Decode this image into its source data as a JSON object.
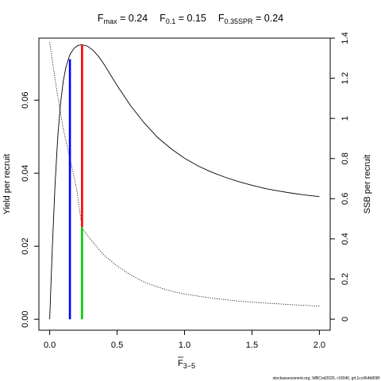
{
  "chart_data": {
    "type": "line",
    "title_parts": {
      "fmax_label": "F",
      "fmax_sub": "max",
      "fmax_value": " = 0.24",
      "f01_label": "F",
      "f01_sub": "0.1",
      "f01_value": " = 0.15",
      "fspr_label": "F",
      "fspr_sub": "0.35SPR",
      "fspr_value": " = 0.24"
    },
    "xlabel": "F",
    "xlabel_sub": "3−5",
    "ylabel_left": "Yield per recruit",
    "ylabel_right": "SSB per recruit",
    "xlim": [
      -0.08,
      2.08
    ],
    "ylim_left": [
      -0.003,
      0.077
    ],
    "ylim_right": [
      -0.055,
      1.4
    ],
    "x_ticks": [
      0,
      0.5,
      1,
      1.5,
      2
    ],
    "x_tick_labels": [
      "0.0",
      "0.5",
      "1.0",
      "1.5",
      "2.0"
    ],
    "y_left_ticks": [
      0,
      0.02,
      0.04,
      0.06
    ],
    "y_left_tick_labels": [
      "0.00",
      "0.02",
      "0.04",
      "0.06"
    ],
    "y_right_ticks": [
      0,
      0.2,
      0.4,
      0.6,
      0.8,
      1,
      1.2,
      1.4
    ],
    "y_right_tick_labels": [
      "0",
      "0.2",
      "0.4",
      "0.6",
      "0.8",
      "1",
      "1.2",
      "1.4"
    ],
    "series": [
      {
        "axis": "left",
        "style": "solid",
        "color": "#000000",
        "x": [
          0,
          0.02,
          0.04,
          0.06,
          0.08,
          0.1,
          0.12,
          0.15,
          0.18,
          0.21,
          0.24,
          0.28,
          0.32,
          0.36,
          0.4,
          0.45,
          0.5,
          0.6,
          0.7,
          0.8,
          0.9,
          1.0,
          1.1,
          1.2,
          1.3,
          1.4,
          1.5,
          1.6,
          1.7,
          1.8,
          1.9,
          2.0
        ],
        "values": [
          0,
          0.02,
          0.037,
          0.05,
          0.059,
          0.065,
          0.069,
          0.0725,
          0.0742,
          0.075,
          0.0752,
          0.0748,
          0.0737,
          0.0721,
          0.07,
          0.067,
          0.064,
          0.0585,
          0.0538,
          0.0498,
          0.0467,
          0.0441,
          0.042,
          0.0403,
          0.0389,
          0.0377,
          0.0367,
          0.0358,
          0.0351,
          0.0345,
          0.034,
          0.0336
        ]
      },
      {
        "axis": "right",
        "style": "dotted",
        "color": "#000000",
        "x": [
          0,
          0.05,
          0.1,
          0.15,
          0.2,
          0.24,
          0.3,
          0.4,
          0.5,
          0.6,
          0.7,
          0.8,
          0.9,
          1.0,
          1.2,
          1.4,
          1.6,
          1.8,
          2.0
        ],
        "values": [
          1.38,
          1.15,
          0.95,
          0.8,
          0.65,
          0.455,
          0.4,
          0.32,
          0.265,
          0.22,
          0.185,
          0.16,
          0.14,
          0.125,
          0.105,
          0.09,
          0.08,
          0.072,
          0.065
        ]
      }
    ],
    "reference_lines": [
      {
        "color": "#0000ff",
        "x": 0.15,
        "y_from": 0,
        "y_to": 0.0712,
        "axis": "left"
      },
      {
        "color": "#ff0000",
        "x": 0.24,
        "y_from": 0.0252,
        "y_to": 0.0752,
        "axis": "left"
      },
      {
        "color": "#00cc00",
        "x": 0.24,
        "y_from": 0,
        "y_to": 0.0252,
        "axis": "left"
      }
    ],
    "footnote": "stockassessment.org, WBCod2025, r19040, git:1cc464b808f",
    "grid": false
  }
}
